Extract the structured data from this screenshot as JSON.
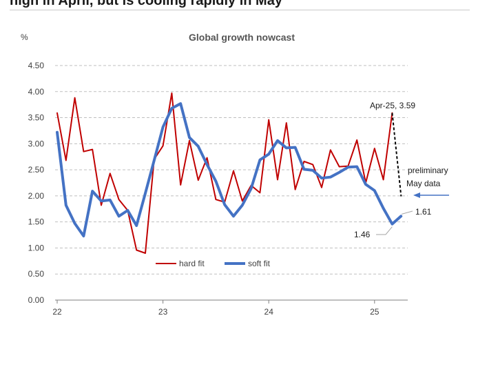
{
  "headline": "high in April, but is cooling rapidly in May",
  "chart_data": {
    "type": "line",
    "title": "Global growth nowcast",
    "ylabel": "%",
    "xlabel": "",
    "ylim": [
      0,
      4.5
    ],
    "yticks": [
      "0.00",
      "0.50",
      "1.00",
      "1.50",
      "2.00",
      "2.50",
      "3.00",
      "3.50",
      "4.00",
      "4.50"
    ],
    "xticks": [
      {
        "label": "22",
        "x": 0
      },
      {
        "label": "23",
        "x": 12
      },
      {
        "label": "24",
        "x": 24
      },
      {
        "label": "25",
        "x": 36
      }
    ],
    "grid": true,
    "legend_position": "bottom-center",
    "series": [
      {
        "name": "hard fit",
        "color": "#c00000",
        "values": [
          3.59,
          2.68,
          3.88,
          2.85,
          2.89,
          1.82,
          2.43,
          1.93,
          1.72,
          0.96,
          0.9,
          2.7,
          2.96,
          3.97,
          2.21,
          3.06,
          2.3,
          2.73,
          1.93,
          1.88,
          2.48,
          1.9,
          2.2,
          2.06,
          3.46,
          2.31,
          3.4,
          2.12,
          2.66,
          2.6,
          2.16,
          2.88,
          2.56,
          2.57,
          3.07,
          2.25,
          2.91,
          2.31,
          3.59
        ]
      },
      {
        "name": "soft fit",
        "color": "#4472c4",
        "values": [
          3.22,
          1.82,
          1.47,
          1.23,
          2.09,
          1.9,
          1.92,
          1.61,
          1.72,
          1.43,
          2.05,
          2.68,
          3.32,
          3.68,
          3.77,
          3.12,
          2.95,
          2.6,
          2.28,
          1.83,
          1.61,
          1.82,
          2.14,
          2.69,
          2.8,
          3.06,
          2.92,
          2.93,
          2.51,
          2.49,
          2.34,
          2.36,
          2.45,
          2.55,
          2.56,
          2.22,
          2.1,
          1.76,
          1.46,
          1.61
        ]
      }
    ],
    "annotations": {
      "peak_label": "Apr-25, 3.59",
      "preliminary_label_1": "preliminary",
      "preliminary_label_2": "May data",
      "soft_last_label": "1.61",
      "soft_prev_label": "1.46",
      "preliminary_end_value": 1.99,
      "preliminary_start_value": 3.59
    }
  }
}
